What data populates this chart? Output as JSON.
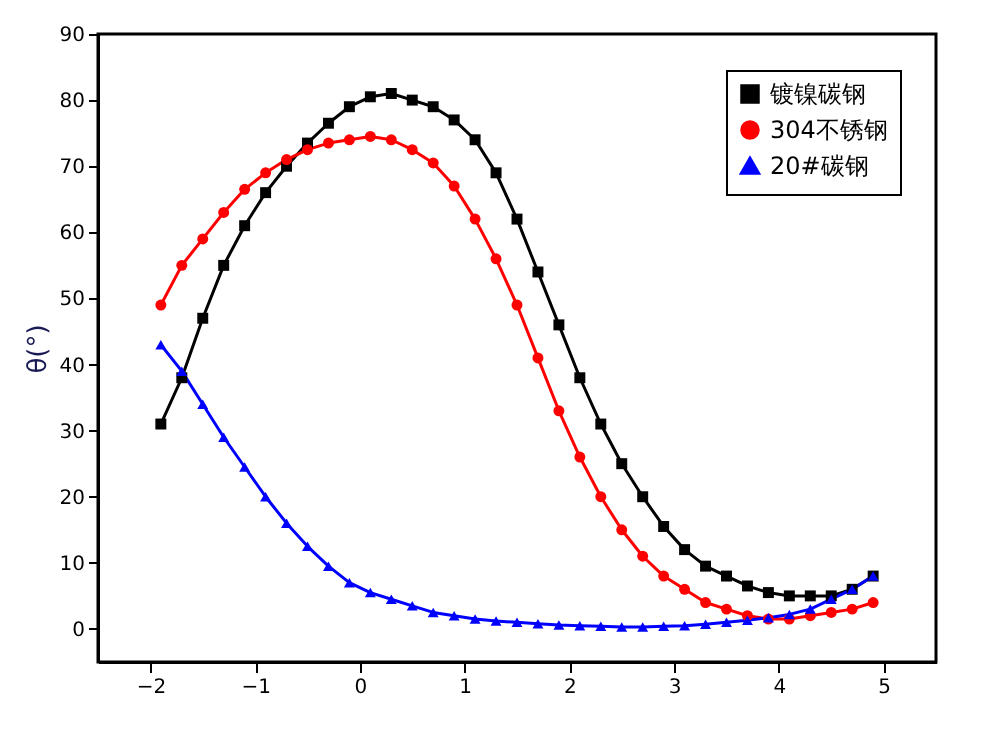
{
  "chart_data": {
    "type": "line",
    "ylabel": "θ(°)",
    "xlim": [
      -2.5,
      5.5
    ],
    "ylim": [
      -5,
      90
    ],
    "xticks": [
      -2,
      -1,
      0,
      1,
      2,
      3,
      4,
      5
    ],
    "yticks": [
      0,
      10,
      20,
      30,
      40,
      50,
      60,
      70,
      80,
      90
    ],
    "grid": false,
    "legend": "top right",
    "line_style": "solid",
    "x": [
      -1.9,
      -1.7,
      -1.5,
      -1.3,
      -1.1,
      -0.9,
      -0.7,
      -0.5,
      -0.3,
      -0.1,
      0.1,
      0.3,
      0.5,
      0.7,
      0.9,
      1.1,
      1.3,
      1.5,
      1.7,
      1.9,
      2.1,
      2.3,
      2.5,
      2.7,
      2.9,
      3.1,
      3.3,
      3.5,
      3.7,
      3.9,
      4.1,
      4.3,
      4.5,
      4.7,
      4.9
    ],
    "series": [
      {
        "name": "镀镍碳钢",
        "color": "#000000",
        "marker": "square",
        "values": [
          31,
          38,
          47,
          55,
          61,
          66,
          70,
          73.5,
          76.5,
          79,
          80.5,
          81,
          80,
          79,
          77,
          74,
          69,
          62,
          54,
          46,
          38,
          31,
          25,
          20,
          15.5,
          12,
          9.5,
          8,
          6.5,
          5.5,
          5,
          5,
          5,
          6,
          8
        ]
      },
      {
        "name": "304不锈钢",
        "color": "#ff0000",
        "marker": "circle",
        "values": [
          49,
          55,
          59,
          63,
          66.5,
          69,
          71,
          72.5,
          73.5,
          74,
          74.5,
          74,
          72.5,
          70.5,
          67,
          62,
          56,
          49,
          41,
          33,
          26,
          20,
          15,
          11,
          8,
          6,
          4,
          3,
          2,
          1.5,
          1.5,
          2,
          2.5,
          3,
          4
        ]
      },
      {
        "name": "20#碳钢",
        "color": "#0000ff",
        "marker": "triangle",
        "values": [
          43,
          39,
          34,
          29,
          24.5,
          20,
          16,
          12.5,
          9.5,
          7,
          5.5,
          4.5,
          3.5,
          2.5,
          2,
          1.5,
          1.2,
          1,
          0.8,
          0.6,
          0.5,
          0.4,
          0.3,
          0.3,
          0.4,
          0.5,
          0.7,
          1,
          1.3,
          1.7,
          2.2,
          3,
          4.5,
          6,
          8
        ]
      }
    ]
  }
}
